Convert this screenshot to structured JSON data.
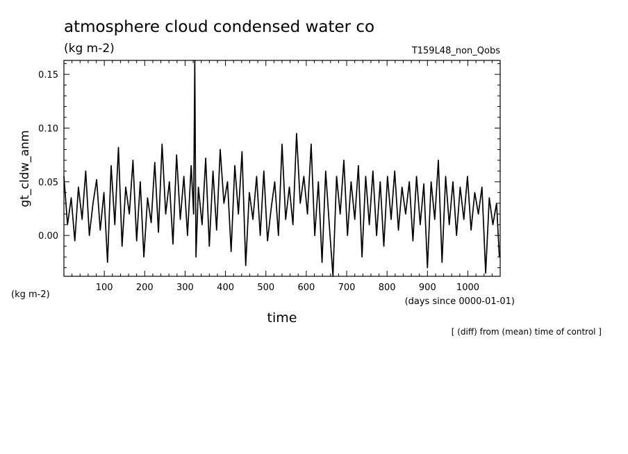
{
  "chart_data": {
    "type": "line",
    "title": "atmosphere cloud condensed water co",
    "units_label": "(kg m-2)",
    "run_label": "T159L48_non_Qobs",
    "xlabel": "time",
    "x_units": "(days since 0000-01-01)",
    "ylabel": "gt_cldw_anm",
    "y_units_left": "(kg m-2)",
    "footnote": "[ (diff) from (mean) time of control ]",
    "xlim": [
      0,
      1080
    ],
    "ylim": [
      -0.038,
      0.163
    ],
    "x_ticks": [
      100,
      200,
      300,
      400,
      500,
      600,
      700,
      800,
      900,
      1000
    ],
    "x_tick_labels": [
      "100",
      "200",
      "300",
      "400",
      "500",
      "600",
      "700",
      "800",
      "900",
      "1000"
    ],
    "y_ticks": [
      0.0,
      0.05,
      0.1,
      0.15
    ],
    "y_tick_labels": [
      "0.00",
      "0.05",
      "0.10",
      "0.15"
    ],
    "series": [
      {
        "name": "gt_cldw_anm",
        "x": [
          0,
          9,
          18,
          27,
          36,
          45,
          54,
          63,
          72,
          81,
          90,
          99,
          108,
          117,
          126,
          135,
          144,
          153,
          162,
          171,
          180,
          189,
          198,
          207,
          216,
          225,
          234,
          243,
          252,
          261,
          270,
          279,
          288,
          297,
          306,
          315,
          321,
          324,
          327,
          333,
          342,
          351,
          360,
          369,
          378,
          387,
          396,
          405,
          414,
          423,
          432,
          441,
          450,
          459,
          468,
          477,
          486,
          495,
          504,
          513,
          522,
          531,
          540,
          549,
          558,
          567,
          576,
          585,
          594,
          603,
          612,
          621,
          630,
          639,
          648,
          657,
          666,
          675,
          684,
          693,
          702,
          711,
          720,
          729,
          738,
          747,
          756,
          765,
          774,
          783,
          792,
          801,
          810,
          819,
          828,
          837,
          846,
          855,
          864,
          873,
          882,
          891,
          900,
          909,
          918,
          927,
          936,
          945,
          954,
          963,
          972,
          981,
          990,
          999,
          1008,
          1017,
          1026,
          1035,
          1044,
          1053,
          1062,
          1071,
          1078
        ],
        "values": [
          0.055,
          0.01,
          0.035,
          -0.005,
          0.045,
          0.015,
          0.06,
          0.0,
          0.03,
          0.052,
          0.005,
          0.04,
          -0.025,
          0.065,
          0.01,
          0.082,
          -0.01,
          0.045,
          0.02,
          0.07,
          -0.005,
          0.05,
          -0.02,
          0.035,
          0.012,
          0.068,
          0.003,
          0.085,
          0.02,
          0.05,
          -0.008,
          0.075,
          0.015,
          0.055,
          0.0,
          0.065,
          0.02,
          0.163,
          -0.02,
          0.045,
          0.01,
          0.072,
          -0.01,
          0.06,
          0.005,
          0.08,
          0.03,
          0.05,
          -0.015,
          0.065,
          0.02,
          0.078,
          -0.028,
          0.04,
          0.015,
          0.055,
          0.0,
          0.06,
          -0.005,
          0.025,
          0.05,
          0.0,
          0.085,
          0.015,
          0.045,
          0.01,
          0.095,
          0.03,
          0.055,
          0.02,
          0.085,
          0.0,
          0.05,
          -0.025,
          0.06,
          0.01,
          -0.038,
          0.055,
          0.02,
          0.07,
          0.0,
          0.05,
          0.015,
          0.065,
          -0.02,
          0.055,
          0.01,
          0.06,
          0.0,
          0.05,
          -0.01,
          0.055,
          0.015,
          0.06,
          0.005,
          0.045,
          0.02,
          0.05,
          -0.005,
          0.055,
          0.01,
          0.048,
          -0.03,
          0.05,
          0.015,
          0.07,
          -0.025,
          0.055,
          0.01,
          0.05,
          0.0,
          0.045,
          0.015,
          0.055,
          0.005,
          0.04,
          0.02,
          0.045,
          -0.035,
          0.035,
          0.01,
          0.03,
          -0.02
        ]
      }
    ]
  }
}
